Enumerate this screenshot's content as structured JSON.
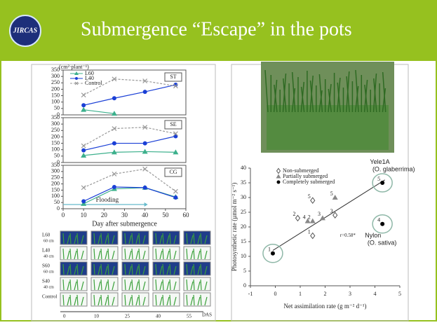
{
  "header": {
    "logo": "JIRCAS",
    "title": "Submergence “Escape” in the pots"
  },
  "chart_data": [
    {
      "type": "line",
      "title": "ST",
      "y_label": "(cm²·plant⁻¹)",
      "x": [
        10,
        25,
        40,
        55
      ],
      "xlim": [
        0,
        60
      ],
      "ylim": [
        0,
        350
      ],
      "yticks": [
        0,
        50,
        100,
        150,
        200,
        250,
        300,
        350
      ],
      "series": [
        {
          "name": "L60",
          "color": "#3cb08c",
          "marker": "triangle",
          "values": [
            40,
            10,
            null,
            null
          ]
        },
        {
          "name": "L40",
          "color": "#1a3fd6",
          "marker": "circle",
          "values": [
            75,
            130,
            180,
            235
          ]
        },
        {
          "name": "Control",
          "color": "#999999",
          "marker": "cross",
          "dashed": true,
          "values": [
            155,
            280,
            265,
            225
          ]
        }
      ]
    },
    {
      "type": "line",
      "title": "SE",
      "x": [
        10,
        25,
        40,
        55
      ],
      "xlim": [
        0,
        60
      ],
      "ylim": [
        0,
        350
      ],
      "yticks": [
        0,
        50,
        100,
        150,
        200,
        250,
        300,
        350
      ],
      "series": [
        {
          "color": "#3cb08c",
          "marker": "triangle",
          "values": [
            55,
            80,
            85,
            80
          ]
        },
        {
          "color": "#1a3fd6",
          "marker": "circle",
          "values": [
            95,
            150,
            150,
            205
          ]
        },
        {
          "color": "#999999",
          "marker": "cross",
          "dashed": true,
          "values": [
            130,
            265,
            275,
            225
          ]
        }
      ]
    },
    {
      "type": "line",
      "title": "CG",
      "annotation": "Flooding",
      "x": [
        10,
        25,
        40,
        55
      ],
      "x_label": "Day after submergence",
      "xlim": [
        0,
        60
      ],
      "xticks": [
        0,
        10,
        20,
        30,
        40,
        50,
        60
      ],
      "ylim": [
        0,
        350
      ],
      "yticks": [
        0,
        50,
        100,
        150,
        200,
        250,
        300,
        350
      ],
      "series": [
        {
          "color": "#3cb08c",
          "marker": "triangle",
          "values": [
            40,
            160,
            170,
            95
          ]
        },
        {
          "color": "#1a3fd6",
          "marker": "circle",
          "values": [
            60,
            175,
            170,
            90
          ]
        },
        {
          "color": "#999999",
          "marker": "cross",
          "dashed": true,
          "values": [
            170,
            280,
            320,
            140
          ]
        }
      ]
    },
    {
      "type": "scatter",
      "x_label": "Net assimilation rate (g m⁻² d⁻¹)",
      "y_label": "Photosynthetic rate (µmol m⁻² s⁻¹)",
      "xlim": [
        -1,
        5
      ],
      "xticks": [
        -1,
        0,
        1,
        2,
        3,
        4,
        5
      ],
      "ylim": [
        0,
        40
      ],
      "yticks": [
        0,
        5,
        10,
        15,
        20,
        25,
        30,
        35,
        40
      ],
      "annotations": [
        "Yele1A",
        "(O. glaberrima)",
        "Nylon",
        "(O. sativa)",
        "r=0.58*"
      ],
      "trend_line": {
        "x": [
          -0.1,
          4.4
        ],
        "y": [
          12,
          36
        ]
      },
      "series": [
        {
          "name": "Non-submerged",
          "color": "#555555",
          "marker": "diamond",
          "x": [
            1.5,
            0.9,
            2.4,
            1.5
          ],
          "values": [
            29,
            23,
            24,
            17
          ],
          "labels": [
            "5",
            "2",
            "3",
            "1"
          ]
        },
        {
          "name": "Partially submerged",
          "color": "#888888",
          "marker": "triangle",
          "x": [
            2.4,
            1.3,
            1.5,
            1.9
          ],
          "values": [
            30,
            22,
            22,
            23
          ],
          "labels": [
            "5",
            "4",
            "2",
            "3"
          ]
        },
        {
          "name": "Completely submerged",
          "color": "#000000",
          "marker": "circle",
          "x": [
            4.3,
            4.3,
            -0.1
          ],
          "values": [
            35,
            21,
            11
          ],
          "labels": [
            "5",
            "4",
            "1"
          ]
        }
      ]
    }
  ],
  "photo_grid": {
    "rows": [
      "L60",
      "L40",
      "S60",
      "S40",
      "Control"
    ],
    "depths": [
      "60 cm",
      "40 cm",
      "60 cm",
      "40 cm"
    ],
    "columns": [
      0,
      10,
      25,
      40,
      55
    ],
    "axis_label": "DAS"
  }
}
